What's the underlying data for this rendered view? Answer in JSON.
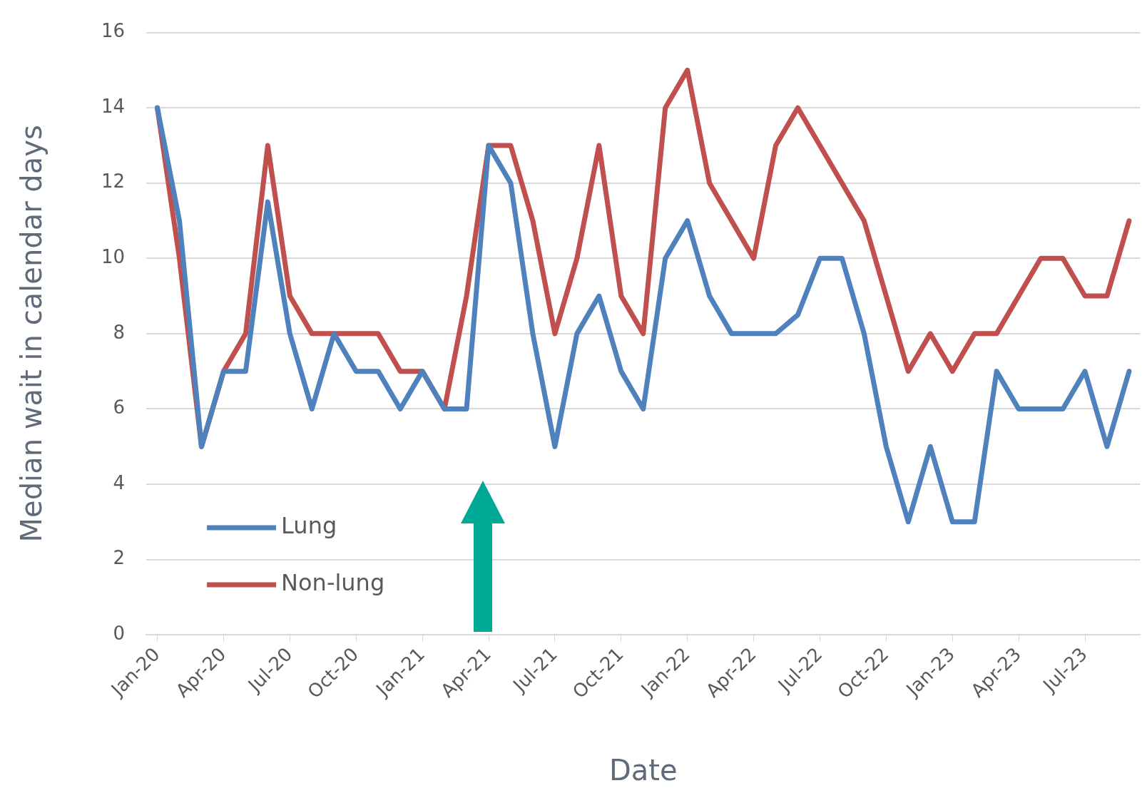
{
  "chart_data": {
    "type": "line",
    "xlabel": "Date",
    "ylabel": "Median wait in calendar days",
    "categories": [
      "Jan-20",
      null,
      null,
      "Apr-20",
      null,
      null,
      "Jul-20",
      null,
      null,
      "Oct-20",
      null,
      null,
      "Jan-21",
      null,
      null,
      "Apr-21",
      null,
      null,
      "Jul-21",
      null,
      null,
      "Oct-21",
      null,
      null,
      "Jan-22",
      null,
      null,
      "Apr-22",
      null,
      null,
      "Jul-22",
      null,
      null,
      "Oct-22",
      null,
      null,
      "Jan-23",
      null,
      null,
      "Apr-23",
      null,
      null,
      "Jul-23",
      null,
      null
    ],
    "series": [
      {
        "name": "Lung",
        "color": "#4f81bd",
        "values": [
          14,
          11,
          5,
          7,
          7,
          11.5,
          8,
          6,
          8,
          7,
          7,
          6,
          7,
          6,
          6,
          13,
          12,
          8,
          5,
          8,
          9,
          7,
          6,
          10,
          11,
          9,
          8,
          8,
          8,
          8.5,
          10,
          10,
          8,
          5,
          3,
          5,
          3,
          3,
          7,
          6,
          6,
          6,
          7,
          5,
          7
        ]
      },
      {
        "name": "Non-lung",
        "color": "#c0504d",
        "values": [
          14,
          10,
          5,
          7,
          8,
          13,
          9,
          8,
          8,
          8,
          8,
          7,
          7,
          6,
          9,
          13,
          13,
          11,
          8,
          10,
          13,
          9,
          8,
          14,
          15,
          12,
          11,
          10,
          13,
          14,
          13,
          12,
          11,
          9,
          7,
          8,
          7,
          8,
          8,
          9,
          10,
          10,
          9,
          9,
          11
        ]
      }
    ],
    "ylim": [
      0,
      16
    ],
    "yticks": [
      0,
      2,
      4,
      6,
      8,
      10,
      12,
      14,
      16
    ],
    "grid": "y",
    "legend": "bottom left",
    "marker": "none",
    "line_style": "solid"
  }
}
